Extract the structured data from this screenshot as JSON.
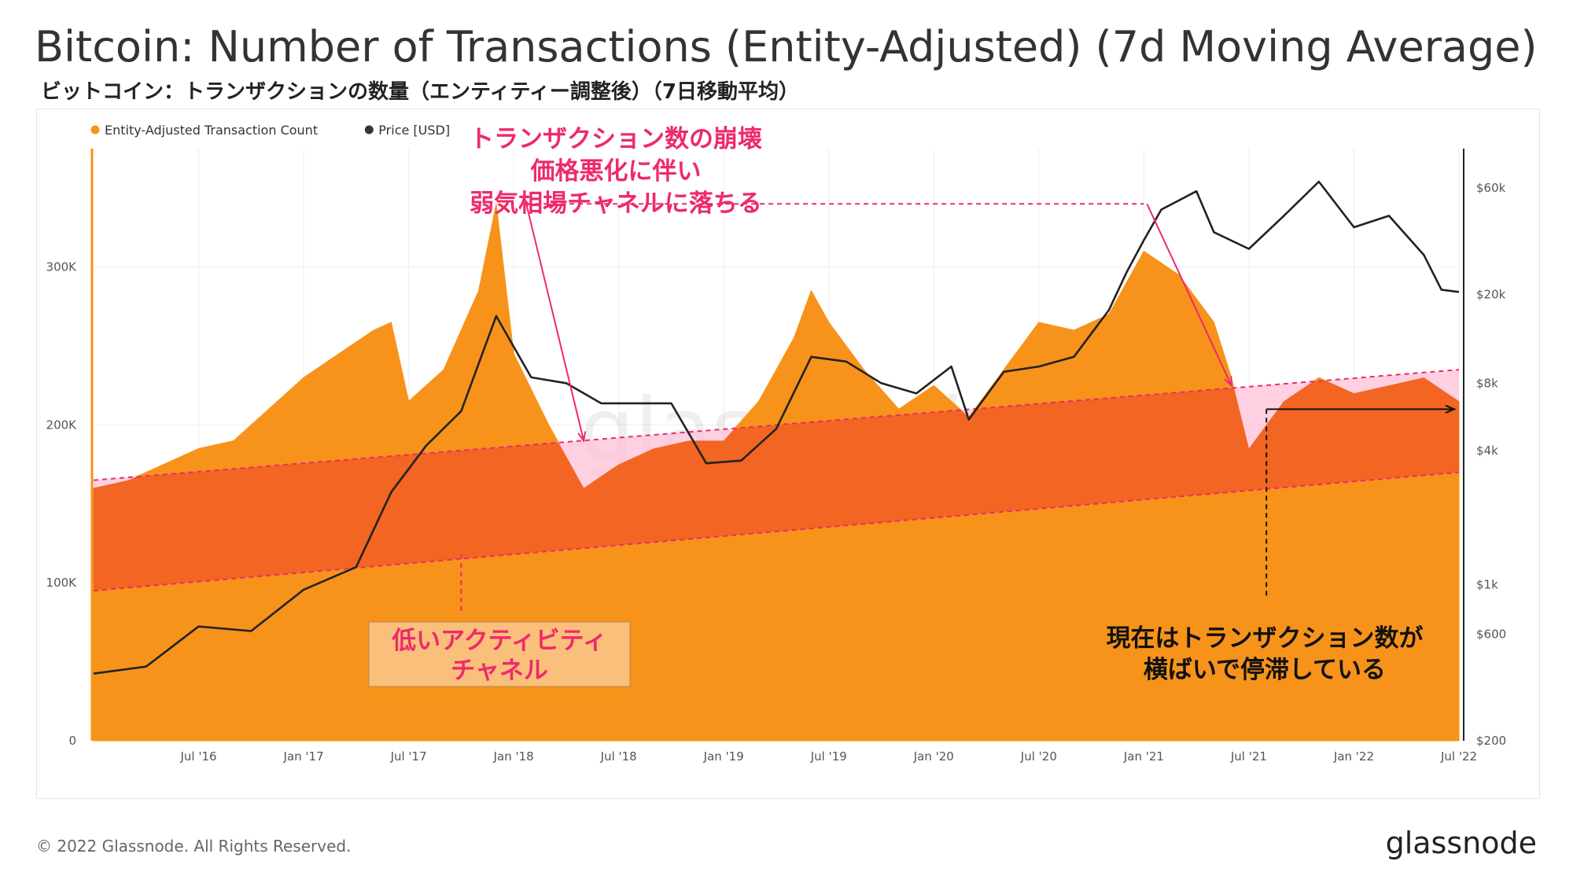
{
  "header": {
    "title": "Bitcoin: Number of Transactions (Entity-Adjusted) (7d Moving Average)",
    "subtitle": "ビットコイン：トランザクションの数量（エンティティー調整後）（7日移動平均）"
  },
  "footer": {
    "copyright": "© 2022 Glassnode. All Rights Reserved.",
    "logo": "glassnode"
  },
  "watermark": "glassnode",
  "colors": {
    "tx_area": "#f7931a",
    "price_line": "#222222",
    "annotation_pink": "#ee2a6b",
    "channel_fill": "#f26522",
    "below_channel_fill": "#ffc0d8",
    "label_box": "#fbbf7c"
  },
  "annotations": {
    "collapse": [
      "トランザクション数の崩壊",
      "価格悪化に伴い",
      "弱気相場チャネルに落ちる"
    ],
    "low_channel": [
      "低いアクティビティ",
      "チャネル"
    ],
    "stagnant": [
      "現在はトランザクション数が",
      "横ばいで停滞している"
    ]
  },
  "chart_data": {
    "type": "area",
    "legend": {
      "placement": "top-left",
      "items": [
        {
          "name": "Entity-Adjusted Transaction Count",
          "color": "#f7931a"
        },
        {
          "name": "Price [USD]",
          "color": "#333333"
        }
      ]
    },
    "x_ticks": [
      "Jul '16",
      "Jan '17",
      "Jul '17",
      "Jan '18",
      "Jul '18",
      "Jan '19",
      "Jul '19",
      "Jan '20",
      "Jul '20",
      "Jan '21",
      "Jul '21",
      "Jan '22",
      "Jul '22"
    ],
    "x_range": [
      "2016-01",
      "2022-07"
    ],
    "left_axis": {
      "label": "",
      "ticks": [
        "0",
        "100K",
        "200K",
        "300K"
      ],
      "ylim": [
        0,
        375000
      ]
    },
    "right_axis": {
      "label": "",
      "scale": "log",
      "ticks": [
        "$200",
        "$600",
        "$1k",
        "$4k",
        "$8k",
        "$20k",
        "$60k"
      ],
      "ylim": [
        200,
        90000
      ]
    },
    "grid": true,
    "series": [
      {
        "name": "Entity-Adjusted Transaction Count",
        "axis": "left",
        "x": [
          "2016-01",
          "2016-03",
          "2016-05",
          "2016-07",
          "2016-09",
          "2016-11",
          "2017-01",
          "2017-03",
          "2017-05",
          "2017-06",
          "2017-07",
          "2017-09",
          "2017-11",
          "2017-12",
          "2018-01",
          "2018-03",
          "2018-05",
          "2018-07",
          "2018-09",
          "2018-11",
          "2019-01",
          "2019-03",
          "2019-05",
          "2019-06",
          "2019-07",
          "2019-09",
          "2019-11",
          "2020-01",
          "2020-03",
          "2020-05",
          "2020-07",
          "2020-09",
          "2020-11",
          "2021-01",
          "2021-03",
          "2021-05",
          "2021-06",
          "2021-07",
          "2021-09",
          "2021-11",
          "2022-01",
          "2022-03",
          "2022-05",
          "2022-07"
        ],
        "values": [
          160000,
          165000,
          175000,
          185000,
          190000,
          210000,
          230000,
          245000,
          260000,
          265000,
          215000,
          235000,
          285000,
          340000,
          245000,
          200000,
          160000,
          175000,
          185000,
          190000,
          190000,
          215000,
          255000,
          285000,
          265000,
          235000,
          210000,
          225000,
          205000,
          235000,
          265000,
          260000,
          270000,
          310000,
          295000,
          265000,
          230000,
          185000,
          215000,
          230000,
          220000,
          225000,
          230000,
          215000
        ]
      },
      {
        "name": "Price [USD]",
        "axis": "right",
        "x": [
          "2016-01",
          "2016-04",
          "2016-07",
          "2016-10",
          "2017-01",
          "2017-04",
          "2017-06",
          "2017-08",
          "2017-10",
          "2017-12",
          "2018-02",
          "2018-04",
          "2018-06",
          "2018-08",
          "2018-10",
          "2018-12",
          "2019-02",
          "2019-04",
          "2019-06",
          "2019-08",
          "2019-10",
          "2019-12",
          "2020-02",
          "2020-03",
          "2020-05",
          "2020-07",
          "2020-09",
          "2020-11",
          "2020-12",
          "2021-01",
          "2021-02",
          "2021-04",
          "2021-05",
          "2021-07",
          "2021-09",
          "2021-11",
          "2022-01",
          "2022-03",
          "2022-05",
          "2022-06",
          "2022-07"
        ],
        "values": [
          400,
          430,
          650,
          620,
          950,
          1200,
          2600,
          4200,
          6000,
          16000,
          8500,
          8000,
          6500,
          6500,
          6500,
          3500,
          3600,
          5000,
          10500,
          10000,
          8000,
          7200,
          9500,
          5500,
          9000,
          9500,
          10500,
          17000,
          25000,
          35000,
          48000,
          58000,
          38000,
          32000,
          45000,
          64000,
          40000,
          45000,
          30000,
          21000,
          20500
        ]
      }
    ],
    "overlays": {
      "upper_channel_line": {
        "start": [
          "2016-01",
          165000
        ],
        "end": [
          "2022-07",
          235000
        ]
      },
      "lower_channel_line": {
        "start": [
          "2016-01",
          95000
        ],
        "end": [
          "2022-07",
          170000
        ]
      },
      "dashed_price_high": {
        "from": "2018-01",
        "to": "2021-01"
      },
      "sideways_arrow": {
        "from": "2021-08",
        "to": "2022-07"
      }
    }
  }
}
